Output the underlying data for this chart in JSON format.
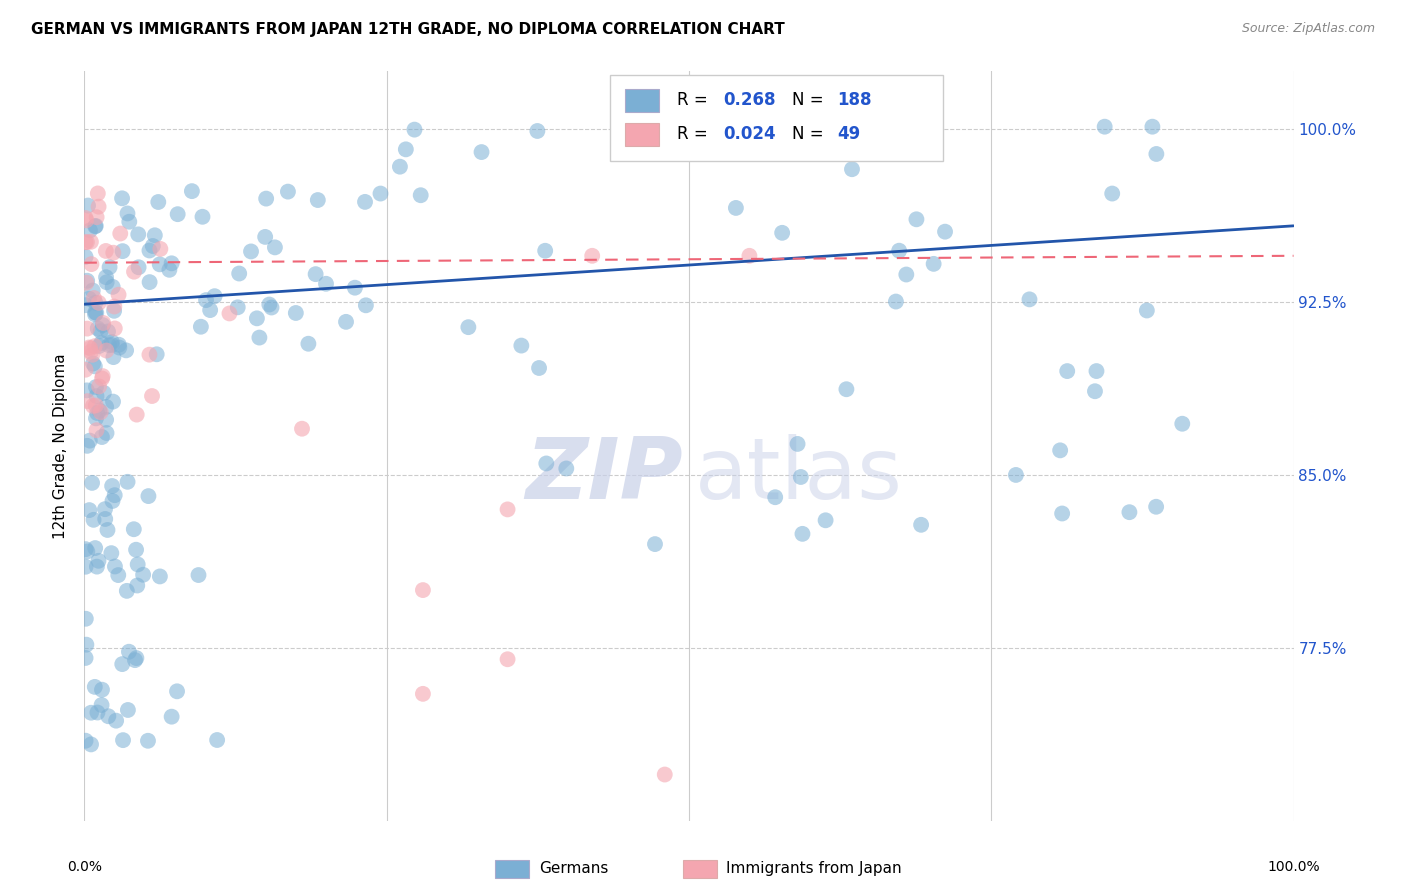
{
  "title": "GERMAN VS IMMIGRANTS FROM JAPAN 12TH GRADE, NO DIPLOMA CORRELATION CHART",
  "source": "Source: ZipAtlas.com",
  "ylabel": "12th Grade, No Diploma",
  "ytick_labels": [
    "77.5%",
    "85.0%",
    "92.5%",
    "100.0%"
  ],
  "ytick_values": [
    0.775,
    0.85,
    0.925,
    1.0
  ],
  "legend_label1": "Germans",
  "legend_label2": "Immigrants from Japan",
  "r1": "0.268",
  "n1": "188",
  "r2": "0.024",
  "n2": "49",
  "blue_color": "#7BAFD4",
  "pink_color": "#F4A6B0",
  "trendline_blue": "#2255AA",
  "trendline_pink": "#EE6677",
  "blue_r_color": "#2255CC",
  "pink_r_color": "#2255CC",
  "ytick_color": "#2255CC",
  "watermark_zip_color": "#C8D0E8",
  "watermark_atlas_color": "#C8D0E8",
  "x_min": 0.0,
  "x_max": 1.0,
  "y_min": 0.7,
  "y_max": 1.025,
  "blue_trendline_start_y": 0.924,
  "blue_trendline_end_y": 0.958,
  "pink_trendline_start_y": 0.942,
  "pink_trendline_end_y": 0.945
}
